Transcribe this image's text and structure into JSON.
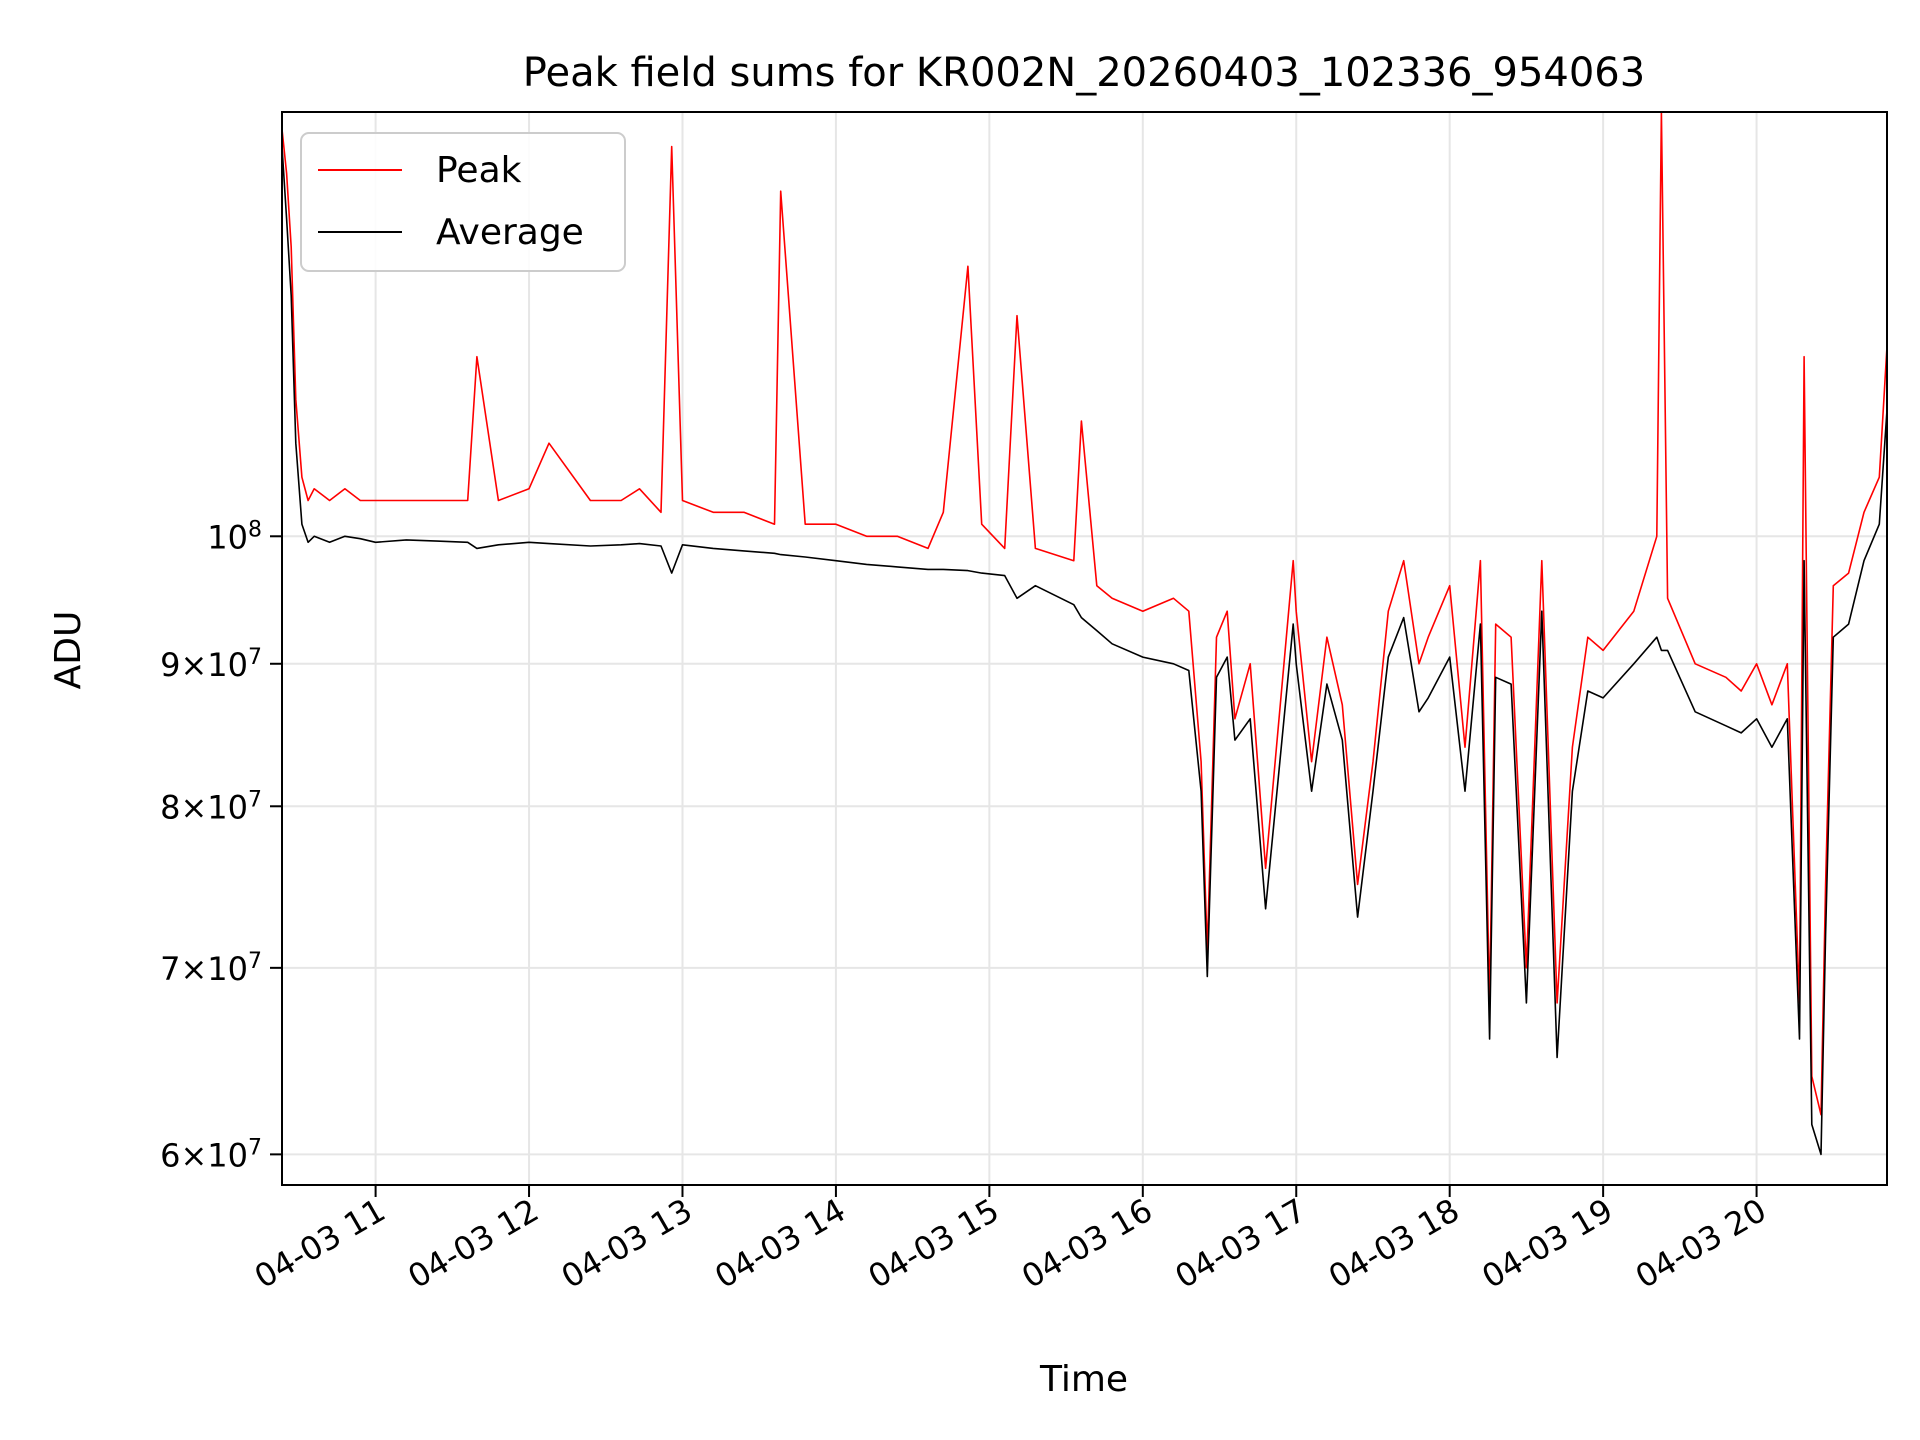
{
  "chart_data": {
    "type": "line",
    "title": "Peak field sums for KR002N_20260403_102336_954063",
    "xlabel": "Time",
    "ylabel": "ADU",
    "yscale": "log",
    "ylim": [
      58500000,
      142000000
    ],
    "xlim_hours": [
      10.39,
      20.85
    ],
    "x_unit": "hour of day 2026-04-03",
    "grid": true,
    "legend_position": "upper-left",
    "x_ticks": [
      {
        "value": 11,
        "label": "04-03 11"
      },
      {
        "value": 12,
        "label": "04-03 12"
      },
      {
        "value": 13,
        "label": "04-03 13"
      },
      {
        "value": 14,
        "label": "04-03 14"
      },
      {
        "value": 15,
        "label": "04-03 15"
      },
      {
        "value": 16,
        "label": "04-03 16"
      },
      {
        "value": 17,
        "label": "04-03 17"
      },
      {
        "value": 18,
        "label": "04-03 18"
      },
      {
        "value": 19,
        "label": "04-03 19"
      },
      {
        "value": 20,
        "label": "04-03 20"
      }
    ],
    "y_ticks": [
      {
        "value": 60000000,
        "mant": "6",
        "exp": "7"
      },
      {
        "value": 70000000,
        "mant": "7",
        "exp": "7"
      },
      {
        "value": 80000000,
        "mant": "8",
        "exp": "7"
      },
      {
        "value": 90000000,
        "mant": "9",
        "exp": "7"
      },
      {
        "value": 100000000,
        "mant": "",
        "exp": "8"
      }
    ],
    "series": [
      {
        "name": "Peak",
        "color": "#ff0000",
        "x": [
          10.39,
          10.42,
          10.45,
          10.48,
          10.52,
          10.56,
          10.6,
          10.7,
          10.8,
          10.9,
          11.0,
          11.2,
          11.4,
          11.6,
          11.66,
          11.8,
          12.0,
          12.13,
          12.4,
          12.6,
          12.72,
          12.86,
          12.93,
          13.0,
          13.2,
          13.4,
          13.6,
          13.64,
          13.8,
          14.0,
          14.2,
          14.4,
          14.6,
          14.7,
          14.86,
          14.95,
          15.1,
          15.18,
          15.3,
          15.55,
          15.6,
          15.7,
          15.8,
          16.0,
          16.2,
          16.3,
          16.38,
          16.42,
          16.48,
          16.55,
          16.6,
          16.7,
          16.8,
          16.98,
          17.0,
          17.1,
          17.2,
          17.3,
          17.4,
          17.5,
          17.6,
          17.7,
          17.8,
          17.86,
          18.0,
          18.1,
          18.2,
          18.26,
          18.3,
          18.4,
          18.5,
          18.6,
          18.7,
          18.8,
          18.9,
          19.0,
          19.2,
          19.35,
          19.38,
          19.42,
          19.6,
          19.8,
          19.9,
          20.0,
          20.1,
          20.2,
          20.28,
          20.31,
          20.36,
          20.42,
          20.45,
          20.5,
          20.6,
          20.7,
          20.8,
          20.85
        ],
        "y": [
          140000000,
          135000000,
          127000000,
          112000000,
          105000000,
          103000000,
          104000000,
          103000000,
          104000000,
          103000000,
          103000000,
          103000000,
          103000000,
          103000000,
          116000000,
          103000000,
          104000000,
          108000000,
          103000000,
          103000000,
          104000000,
          102000000,
          138000000,
          103000000,
          102000000,
          102000000,
          101000000,
          133000000,
          101000000,
          101000000,
          100000000,
          100000000,
          99000000,
          102000000,
          125000000,
          101000000,
          99000000,
          120000000,
          99000000,
          98000000,
          110000000,
          96000000,
          95000000,
          94000000,
          95000000,
          94000000,
          83000000,
          71000000,
          92000000,
          94000000,
          86000000,
          90000000,
          76000000,
          98000000,
          94000000,
          83000000,
          92000000,
          87000000,
          75000000,
          83000000,
          94000000,
          98000000,
          90000000,
          92000000,
          96000000,
          84000000,
          98000000,
          68000000,
          93000000,
          92000000,
          70000000,
          98000000,
          68000000,
          84000000,
          92000000,
          91000000,
          94000000,
          100000000,
          142000000,
          95000000,
          90000000,
          89000000,
          88000000,
          90000000,
          87000000,
          90000000,
          68000000,
          116000000,
          64000000,
          62000000,
          75000000,
          96000000,
          97000000,
          102000000,
          105000000,
          117000000
        ]
      },
      {
        "name": "Average",
        "color": "#000000",
        "x": [
          10.39,
          10.42,
          10.45,
          10.48,
          10.52,
          10.56,
          10.6,
          10.7,
          10.8,
          10.9,
          11.0,
          11.2,
          11.4,
          11.6,
          11.66,
          11.8,
          12.0,
          12.13,
          12.4,
          12.6,
          12.72,
          12.86,
          12.93,
          13.0,
          13.2,
          13.4,
          13.6,
          13.64,
          13.8,
          14.0,
          14.2,
          14.4,
          14.6,
          14.7,
          14.86,
          14.95,
          15.1,
          15.18,
          15.3,
          15.55,
          15.6,
          15.7,
          15.8,
          16.0,
          16.2,
          16.3,
          16.38,
          16.42,
          16.48,
          16.55,
          16.6,
          16.7,
          16.8,
          16.98,
          17.0,
          17.1,
          17.2,
          17.3,
          17.4,
          17.5,
          17.6,
          17.7,
          17.8,
          17.86,
          18.0,
          18.1,
          18.2,
          18.26,
          18.3,
          18.4,
          18.5,
          18.6,
          18.7,
          18.8,
          18.9,
          19.0,
          19.2,
          19.35,
          19.38,
          19.42,
          19.6,
          19.8,
          19.9,
          20.0,
          20.1,
          20.2,
          20.28,
          20.31,
          20.36,
          20.42,
          20.45,
          20.5,
          20.6,
          20.7,
          20.8,
          20.85
        ],
        "y": [
          138000000,
          130000000,
          122000000,
          108000000,
          101000000,
          99500000,
          100000000,
          99500000,
          100000000,
          99800000,
          99500000,
          99700000,
          99600000,
          99500000,
          99000000,
          99300000,
          99500000,
          99400000,
          99200000,
          99300000,
          99400000,
          99200000,
          97000000,
          99300000,
          99000000,
          98800000,
          98600000,
          98500000,
          98300000,
          98000000,
          97700000,
          97500000,
          97300000,
          97300000,
          97200000,
          97000000,
          96800000,
          95000000,
          96000000,
          94500000,
          93500000,
          92500000,
          91500000,
          90500000,
          90000000,
          89500000,
          81000000,
          69500000,
          89000000,
          90500000,
          84500000,
          86000000,
          73500000,
          93000000,
          90000000,
          81000000,
          88500000,
          84500000,
          73000000,
          81000000,
          90500000,
          93500000,
          86500000,
          87500000,
          90500000,
          81000000,
          93000000,
          66000000,
          89000000,
          88500000,
          68000000,
          94000000,
          65000000,
          81000000,
          88000000,
          87500000,
          90000000,
          92000000,
          91000000,
          91000000,
          86500000,
          85500000,
          85000000,
          86000000,
          84000000,
          86000000,
          66000000,
          98000000,
          61500000,
          60000000,
          72000000,
          92000000,
          93000000,
          98000000,
          101000000,
          111000000
        ]
      }
    ]
  }
}
